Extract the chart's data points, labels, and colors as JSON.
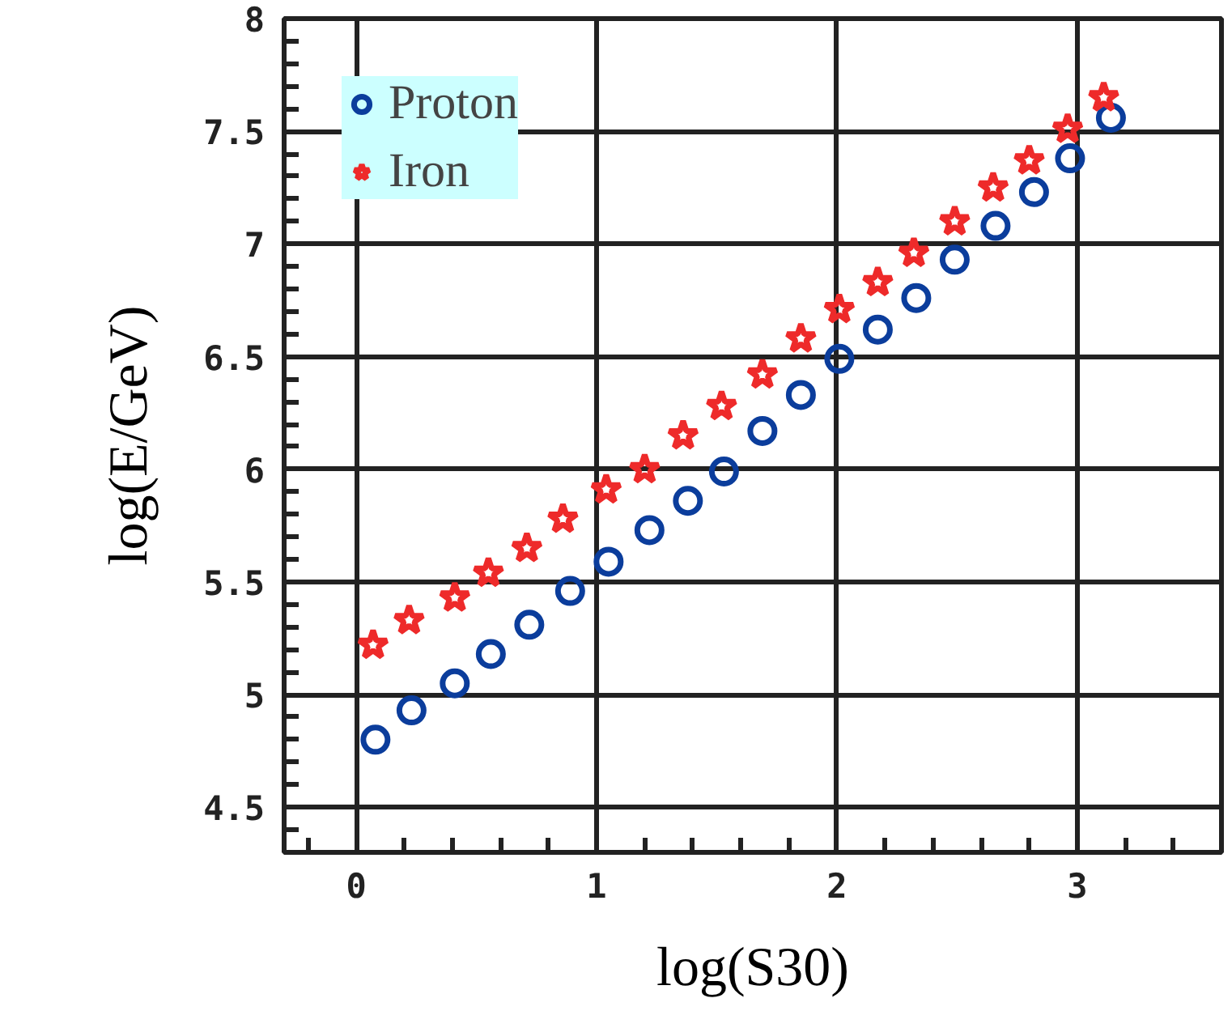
{
  "chart_data": {
    "type": "scatter",
    "xlabel": "log(S30)",
    "ylabel": "log(E/GeV)",
    "xlim": [
      -0.3,
      3.6
    ],
    "ylim": [
      4.3,
      8.0
    ],
    "xticks": [
      0,
      1,
      2,
      3
    ],
    "yticks": [
      {
        "value": 4.5,
        "label": "4.5"
      },
      5,
      5.5,
      6,
      6.5,
      7,
      7.5,
      8
    ],
    "grid": true,
    "legend": "top left",
    "series": [
      {
        "name": "Proton",
        "color": "#0b3d9c",
        "marker": "circle",
        "x": [
          0.08,
          0.23,
          0.41,
          0.56,
          0.72,
          0.89,
          1.05,
          1.22,
          1.38,
          1.53,
          1.69,
          1.85,
          2.01,
          2.17,
          2.33,
          2.49,
          2.66,
          2.82,
          2.97,
          3.14
        ],
        "values": [
          4.8,
          4.93,
          5.05,
          5.18,
          5.31,
          5.46,
          5.59,
          5.73,
          5.86,
          5.99,
          6.17,
          6.33,
          6.49,
          6.62,
          6.76,
          6.93,
          7.08,
          7.23,
          7.38,
          7.56
        ]
      },
      {
        "name": "Iron",
        "color": "#ee2a2a",
        "marker": "star",
        "x": [
          0.07,
          0.22,
          0.41,
          0.55,
          0.71,
          0.86,
          1.04,
          1.2,
          1.36,
          1.52,
          1.69,
          1.85,
          2.01,
          2.17,
          2.32,
          2.49,
          2.65,
          2.8,
          2.96,
          3.11
        ],
        "values": [
          5.22,
          5.33,
          5.43,
          5.54,
          5.65,
          5.78,
          5.91,
          6.0,
          6.15,
          6.28,
          6.42,
          6.58,
          6.71,
          6.83,
          6.96,
          7.1,
          7.25,
          7.37,
          7.51,
          7.65
        ]
      }
    ]
  }
}
